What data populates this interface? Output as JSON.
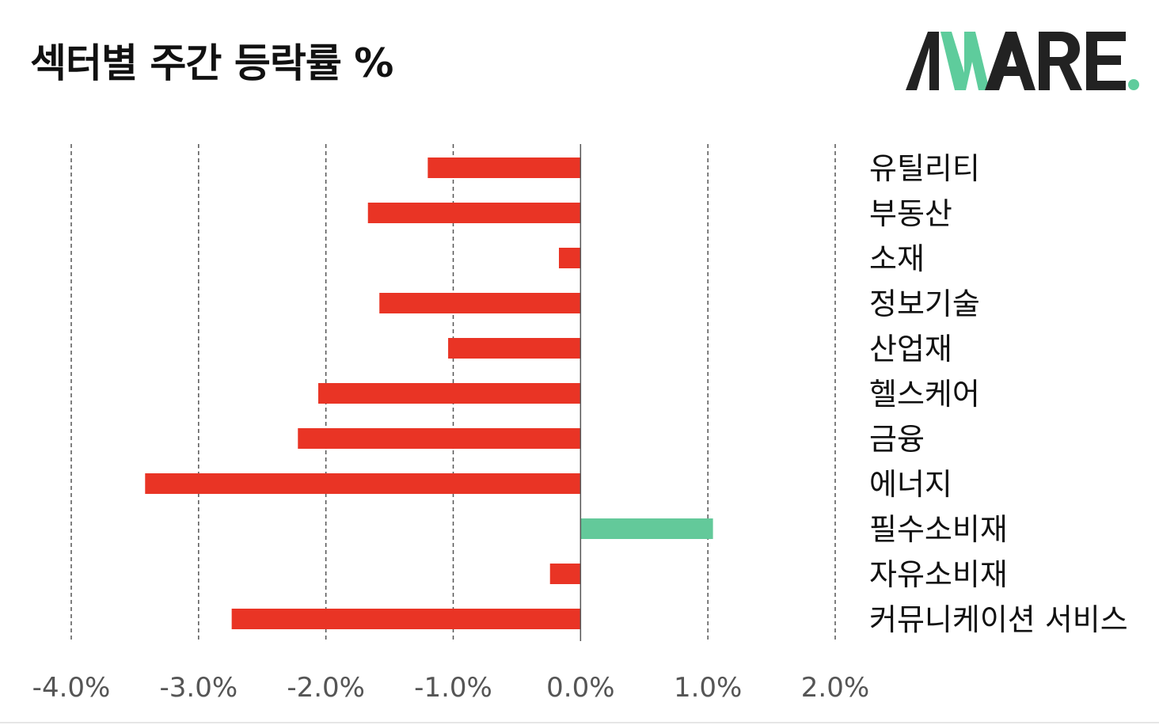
{
  "title": "섹터별 주간 등락률 %",
  "logo": {
    "text": "AWARE.",
    "colors": {
      "dark": "#222222",
      "accent": "#5ecc9c"
    }
  },
  "colors": {
    "negative": "#e93425",
    "positive": "#63c99a",
    "grid": "#555555",
    "axis": "#555555",
    "tick_text": "#555555",
    "label_text": "#111111"
  },
  "chart_data": {
    "type": "bar",
    "orientation": "horizontal",
    "title": "섹터별 주간 등락률 %",
    "xlabel": "",
    "ylabel": "",
    "xlim": [
      -4.0,
      2.0
    ],
    "grid": true,
    "x_ticks": [
      -4.0,
      -3.0,
      -2.0,
      -1.0,
      0.0,
      1.0,
      2.0
    ],
    "x_tick_labels": [
      "-4.0%",
      "-3.0%",
      "-2.0%",
      "-1.0%",
      "0.0%",
      "1.0%",
      "2.0%"
    ],
    "categories": [
      "유틸리티",
      "부동산",
      "소재",
      "정보기술",
      "산업재",
      "헬스케어",
      "금융",
      "에너지",
      "필수소비재",
      "자유소비재",
      "커뮤니케이션 서비스"
    ],
    "values": [
      -1.2,
      -1.67,
      -0.17,
      -1.58,
      -1.04,
      -2.06,
      -2.22,
      -3.42,
      1.04,
      -0.24,
      -2.74
    ]
  }
}
